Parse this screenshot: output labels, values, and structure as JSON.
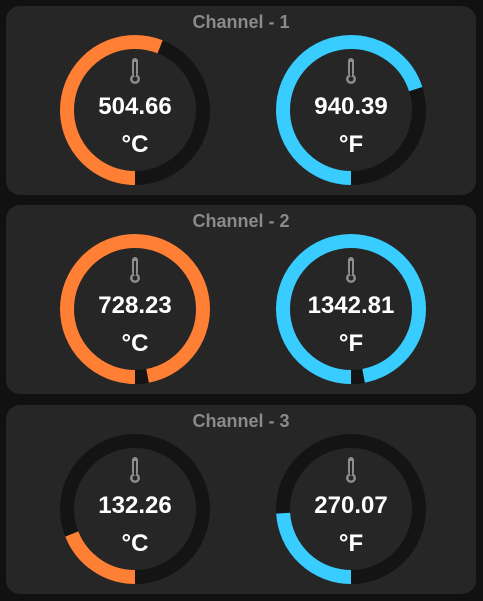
{
  "colors": {
    "background": "#111111",
    "panel": "#262626",
    "title": "#8a8a8a",
    "track": "#141414",
    "celsius": "#ff7f35",
    "fahrenheit": "#38ccff",
    "icon": "#8c8c8c",
    "text": "#ffffff"
  },
  "channels": [
    {
      "title": "Channel - 1",
      "gauges": [
        {
          "value": "504.66",
          "unit": "°C",
          "fill": 0.56,
          "color_key": "celsius",
          "icon": "thermometer-icon"
        },
        {
          "value": "940.39",
          "unit": "°F",
          "fill": 0.7,
          "color_key": "fahrenheit",
          "icon": "thermometer-icon"
        }
      ]
    },
    {
      "title": "Channel - 2",
      "gauges": [
        {
          "value": "728.23",
          "unit": "°C",
          "fill": 0.97,
          "color_key": "celsius",
          "icon": "thermometer-icon"
        },
        {
          "value": "1342.81",
          "unit": "°F",
          "fill": 0.97,
          "color_key": "fahrenheit",
          "icon": "thermometer-icon"
        }
      ]
    },
    {
      "title": "Channel - 3",
      "gauges": [
        {
          "value": "132.26",
          "unit": "°C",
          "fill": 0.19,
          "color_key": "celsius",
          "icon": "thermometer-icon"
        },
        {
          "value": "270.07",
          "unit": "°F",
          "fill": 0.24,
          "color_key": "fahrenheit",
          "icon": "thermometer-icon"
        }
      ]
    }
  ]
}
